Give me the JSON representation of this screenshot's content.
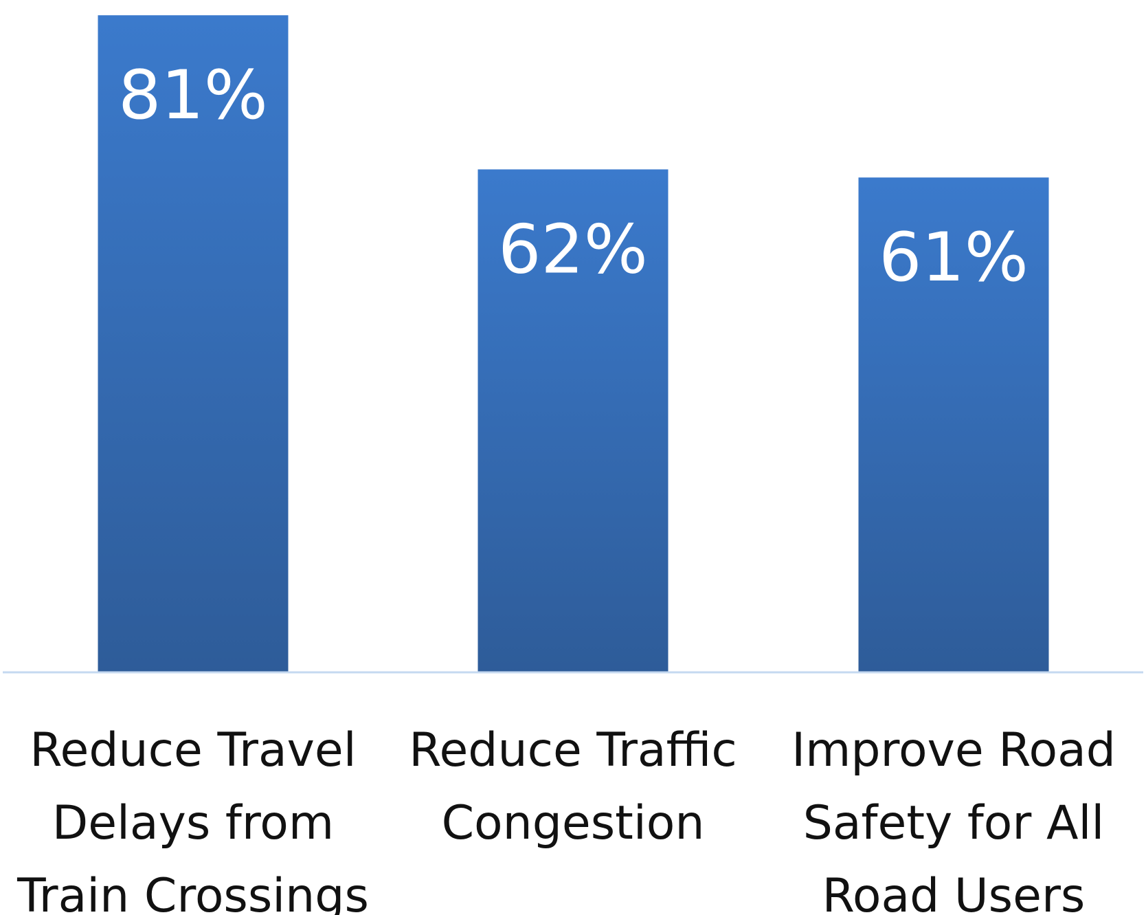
{
  "chart_data": {
    "type": "bar",
    "title": "",
    "xlabel": "",
    "ylabel": "",
    "categories": [
      "Reduce Travel Delays from Train Crossings",
      "Reduce Traffic Congestion",
      "Improve Road Safety for All Road Users"
    ],
    "category_lines": [
      [
        "Reduce Travel",
        "Delays from",
        "Train Crossings"
      ],
      [
        "Reduce Traffic",
        "Congestion"
      ],
      [
        "Improve Road",
        "Safety for All",
        "Road Users"
      ]
    ],
    "values": [
      81,
      62,
      61
    ],
    "data_labels": [
      "81%",
      "62%",
      "61%"
    ],
    "ylim": [
      0,
      90
    ],
    "grid": false,
    "legend": "none",
    "colors": {
      "bar_top": "#3b7acc",
      "bar_bottom": "#2e5c99",
      "baseline": "#c5d9f0",
      "label": "#ffffff",
      "category_text": "#111111"
    }
  }
}
